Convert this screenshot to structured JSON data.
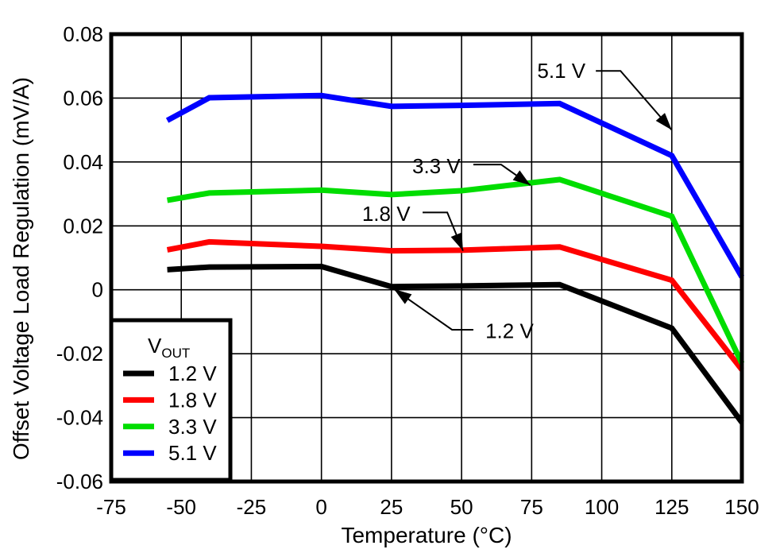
{
  "chart_data": {
    "type": "line",
    "title": "",
    "xlabel": "Temperature (°C)",
    "ylabel": "Offset Voltage Load Regulation (mV/A)",
    "xlim": [
      -75,
      150
    ],
    "ylim": [
      -0.06,
      0.08
    ],
    "grid": true,
    "xticks": {
      "values": [
        -75,
        -50,
        -25,
        0,
        25,
        50,
        75,
        100,
        125,
        150
      ],
      "labels": [
        "-75",
        "-50",
        "-25",
        "0",
        "25",
        "50",
        "75",
        "100",
        "125",
        "150"
      ]
    },
    "yticks": {
      "values": [
        0.08,
        0.06,
        0.04,
        0.02,
        0,
        -0.02,
        -0.04,
        -0.06
      ],
      "labels": [
        "0.08",
        "0.06",
        "0.04",
        "0.02",
        "0",
        "-0.02",
        "-0.04",
        "-0.06"
      ]
    },
    "x": [
      -55,
      -40,
      0,
      25,
      50,
      85,
      125,
      150
    ],
    "series": [
      {
        "name": "1.2 V",
        "color": "#000000",
        "values": [
          0.0063,
          0.0071,
          0.0073,
          0.001,
          0.0012,
          0.0016,
          -0.012,
          -0.0415
        ]
      },
      {
        "name": "1.8 V",
        "color": "#ff0000",
        "values": [
          0.0125,
          0.015,
          0.0136,
          0.0122,
          0.0124,
          0.0134,
          0.003,
          -0.025
        ]
      },
      {
        "name": "3.3 V",
        "color": "#00dd00",
        "values": [
          0.028,
          0.0303,
          0.0312,
          0.0298,
          0.031,
          0.0345,
          0.023,
          -0.023
        ]
      },
      {
        "name": "5.1 V",
        "color": "#0000ff",
        "values": [
          0.053,
          0.0601,
          0.0608,
          0.0574,
          0.0577,
          0.0583,
          0.042,
          0.004
        ]
      }
    ],
    "legend": {
      "title_main": "V",
      "title_sub": "OUT",
      "position": "lower-left",
      "entries": [
        "1.2 V",
        "1.8 V",
        "3.3 V",
        "5.1 V"
      ]
    },
    "annotations": [
      {
        "label": "5.1 V",
        "text_at": [
          77.0,
          0.0685
        ],
        "leader": [
          [
            97.9,
            0.0685
          ],
          [
            106.7,
            0.0685
          ],
          [
            125.0,
            0.05
          ]
        ]
      },
      {
        "label": "3.3 V",
        "text_at": [
          32.4,
          0.0387
        ],
        "leader": [
          [
            54.2,
            0.0392
          ],
          [
            64.1,
            0.0392
          ],
          [
            74.6,
            0.0327
          ]
        ]
      },
      {
        "label": "1.8 V",
        "text_at": [
          14.5,
          0.0238
        ],
        "leader": [
          [
            36.1,
            0.0242
          ],
          [
            44.9,
            0.0242
          ],
          [
            50.5,
            0.0122
          ]
        ]
      },
      {
        "label": "1.2 V",
        "text_at": [
          58.5,
          -0.0129
        ],
        "leader": [
          [
            54.2,
            -0.0125
          ],
          [
            46.6,
            -0.0125
          ],
          [
            25.9,
            0.0002
          ]
        ]
      }
    ]
  }
}
